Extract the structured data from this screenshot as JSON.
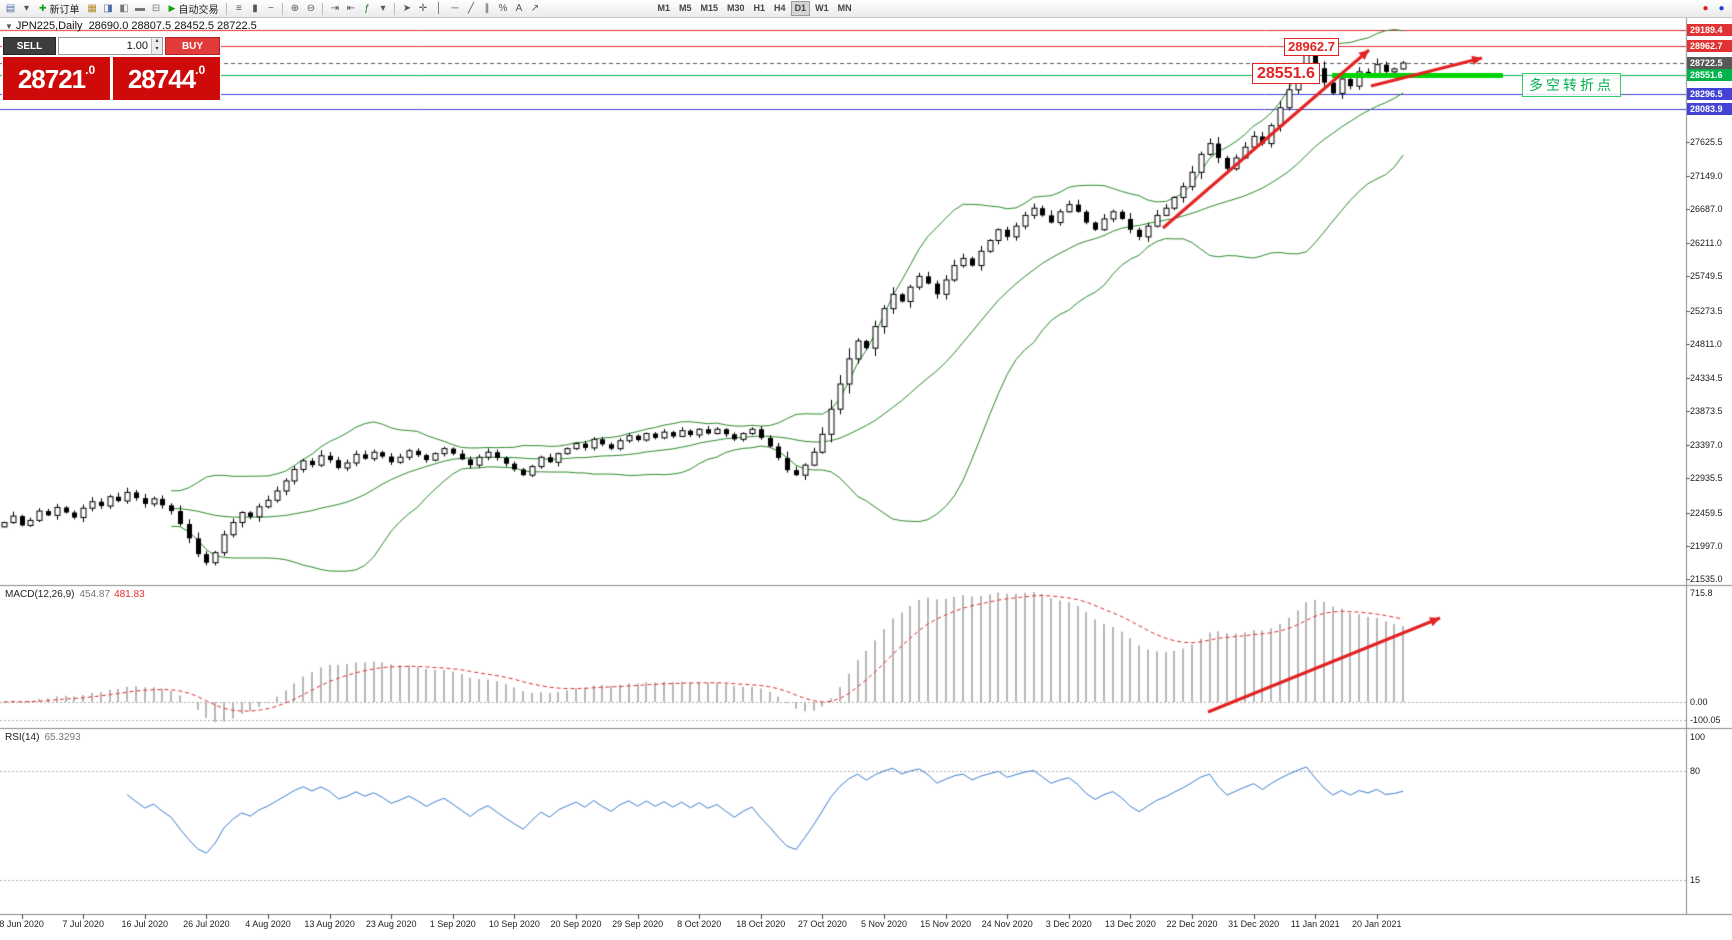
{
  "toolbar": {
    "timeframes": [
      "M1",
      "M5",
      "M15",
      "M30",
      "H1",
      "H4",
      "D1",
      "W1",
      "MN"
    ],
    "active_timeframe": "D1",
    "items": [
      {
        "type": "icon",
        "name": "new-chart-icon",
        "glyph": "▤",
        "color": "#4a6fa5"
      },
      {
        "type": "icon",
        "name": "chart-list-dropdown-icon",
        "glyph": "▾",
        "color": "#555"
      },
      {
        "type": "button",
        "name": "new-order-button",
        "icon_name": "new-order-plus-icon",
        "glyph": "✚",
        "glyph_color": "#1c9c1c",
        "label": "新订单"
      },
      {
        "type": "icon",
        "name": "market-watch-icon",
        "glyph": "▦",
        "color": "#b5882a"
      },
      {
        "type": "icon",
        "name": "data-window-icon",
        "glyph": "◨",
        "color": "#4a6fa5"
      },
      {
        "type": "icon",
        "name": "navigator-icon",
        "glyph": "◧",
        "color": "#777"
      },
      {
        "type": "icon",
        "name": "terminal-icon",
        "glyph": "▬",
        "color": "#777"
      },
      {
        "type": "icon",
        "name": "strategy-tester-icon",
        "glyph": "⊟",
        "color": "#777"
      },
      {
        "type": "button",
        "name": "auto-trading-button",
        "icon_name": "auto-trading-play-icon",
        "glyph": "▶",
        "glyph_color": "#16a016",
        "label": "自动交易"
      },
      {
        "type": "sep"
      },
      {
        "type": "icon",
        "name": "bar-chart-icon",
        "glyph": "≡",
        "color": "#555"
      },
      {
        "type": "icon",
        "name": "candlestick-chart-icon",
        "glyph": "▮",
        "color": "#555"
      },
      {
        "type": "icon",
        "name": "line-chart-icon",
        "glyph": "~",
        "color": "#555"
      },
      {
        "type": "sep"
      },
      {
        "type": "icon",
        "name": "zoom-in-icon",
        "glyph": "⊕",
        "color": "#555"
      },
      {
        "type": "icon",
        "name": "zoom-out-icon",
        "glyph": "⊖",
        "color": "#555"
      },
      {
        "type": "sep"
      },
      {
        "type": "icon",
        "name": "auto-scroll-icon",
        "glyph": "⇥",
        "color": "#555"
      },
      {
        "type": "icon",
        "name": "chart-shift-icon",
        "glyph": "⇤",
        "color": "#555"
      },
      {
        "type": "icon",
        "name": "indicators-icon",
        "glyph": "ƒ",
        "color": "#2a7a2a"
      },
      {
        "type": "icon",
        "name": "indicators-dropdown-icon",
        "glyph": "▾",
        "color": "#555"
      },
      {
        "type": "sep"
      },
      {
        "type": "icon",
        "name": "cursor-icon",
        "glyph": "➤",
        "color": "#555"
      },
      {
        "type": "icon",
        "name": "crosshair-icon",
        "glyph": "✛",
        "color": "#555"
      },
      {
        "type": "icon",
        "name": "vertical-line-icon",
        "glyph": "│",
        "color": "#555"
      },
      {
        "type": "icon",
        "name": "horizontal-line-icon",
        "glyph": "─",
        "color": "#555"
      },
      {
        "type": "icon",
        "name": "trendline-icon",
        "glyph": "╱",
        "color": "#555"
      },
      {
        "type": "icon",
        "name": "equidistant-channel-icon",
        "glyph": "∥",
        "color": "#555"
      },
      {
        "type": "icon",
        "name": "fibonacci-icon",
        "glyph": "%",
        "color": "#555"
      },
      {
        "type": "icon",
        "name": "text-label-icon",
        "glyph": "A",
        "color": "#555"
      },
      {
        "type": "icon",
        "name": "arrows-tool-icon",
        "glyph": "↗",
        "color": "#555"
      },
      {
        "type": "tf-group",
        "ml": 110
      },
      {
        "type": "spacer"
      },
      {
        "type": "icon",
        "name": "alert-icon",
        "glyph": "●",
        "color": "#d42222"
      },
      {
        "type": "icon",
        "name": "news-icon",
        "glyph": "●",
        "color": "#2244cc"
      }
    ]
  },
  "chart": {
    "collapse_arrow": "▼",
    "title": "JPN225,Daily",
    "ohlc_text": "28690.0 28807.5 28452.5 28722.5",
    "price_axis": {
      "regular_ticks": [
        "27625.5",
        "27149.0",
        "26687.0",
        "26211.0",
        "25749.5",
        "25273.5",
        "24811.0",
        "24334.5",
        "23873.5",
        "23397.0",
        "22935.5",
        "22459.5",
        "21997.0",
        "21535.0"
      ],
      "special_ticks": [
        {
          "value": "29189.4",
          "color": "#e03232",
          "line": "solid"
        },
        {
          "value": "28962.7",
          "color": "#e03232",
          "line": "solid"
        },
        {
          "value": "28722.5",
          "color": "#585858",
          "line": "dashed"
        },
        {
          "value": "28551.6",
          "color": "#00b44a",
          "line": "solid"
        },
        {
          "value": "28296.5",
          "color": "#4444d4",
          "line": "solid"
        },
        {
          "value": "28083.9",
          "color": "#4444d4",
          "line": "solid"
        }
      ]
    },
    "annotations": {
      "high_label": "28962.7",
      "pivot_label": "28551.6",
      "pivot_price": "28551.6",
      "note_text": "多空转折点"
    }
  },
  "trade_panel": {
    "sell_label": "SELL",
    "buy_label": "BUY",
    "volume": "1.00",
    "sell_price_main": "28721",
    "sell_price_sup": ".0",
    "buy_price_main": "28744",
    "buy_price_sup": ".0"
  },
  "macd": {
    "label": "MACD(12,26,9)",
    "value_main": "454.87",
    "value_signal": "481.83",
    "axis_labels": [
      "715.8",
      "0.00",
      "-100.05"
    ],
    "levels": [
      0,
      -100.05
    ]
  },
  "rsi": {
    "label": "RSI(14)",
    "value": "65.3293",
    "axis_labels": [
      "100",
      "80",
      "15"
    ],
    "levels": [
      80,
      15
    ]
  },
  "chart_data": {
    "type": "candlestick",
    "symbol": "JPN225",
    "timeframe": "Daily",
    "visible_ohlc": {
      "open": 28690.0,
      "high": 28807.5,
      "low": 28452.5,
      "close": 28722.5
    },
    "y_range": [
      21450,
      29350
    ],
    "levels": [
      29189.4,
      28962.7,
      28722.5,
      28551.6,
      28296.5,
      28083.9
    ],
    "indicators": [
      {
        "name": "Bollinger Bands",
        "params": "20,2"
      },
      {
        "name": "MACD",
        "params": "12,26,9",
        "values": [
          454.87,
          481.83
        ]
      },
      {
        "name": "RSI",
        "params": "14",
        "value": 65.3293
      }
    ],
    "dates": [
      "8 Jun 2020",
      "7 Jul 2020",
      "16 Jul 2020",
      "26 Jul 2020",
      "4 Aug 2020",
      "13 Aug 2020",
      "23 Aug 2020",
      "1 Sep 2020",
      "10 Sep 2020",
      "20 Sep 2020",
      "29 Sep 2020",
      "8 Oct 2020",
      "18 Oct 2020",
      "27 Oct 2020",
      "5 Nov 2020",
      "15 Nov 2020",
      "24 Nov 2020",
      "3 Dec 2020",
      "13 Dec 2020",
      "22 Dec 2020",
      "31 Dec 2020",
      "11 Jan 2021",
      "20 Jan 2021"
    ],
    "closes": [
      22320,
      22410,
      22280,
      22350,
      22480,
      22420,
      22530,
      22460,
      22390,
      22520,
      22610,
      22550,
      22680,
      22620,
      22740,
      22660,
      22580,
      22650,
      22560,
      22480,
      22300,
      22100,
      21880,
      21760,
      21900,
      22150,
      22320,
      22460,
      22400,
      22540,
      22630,
      22760,
      22900,
      23060,
      23180,
      23120,
      23250,
      23190,
      23080,
      23150,
      23270,
      23210,
      23300,
      23240,
      23160,
      23230,
      23320,
      23260,
      23190,
      23280,
      23350,
      23280,
      23200,
      23120,
      23230,
      23300,
      23220,
      23140,
      23060,
      22980,
      23100,
      23230,
      23160,
      23280,
      23350,
      23420,
      23360,
      23480,
      23410,
      23350,
      23460,
      23530,
      23470,
      23560,
      23500,
      23580,
      23520,
      23600,
      23540,
      23620,
      23560,
      23620,
      23550,
      23480,
      23560,
      23620,
      23500,
      23380,
      23220,
      23050,
      22980,
      23120,
      23300,
      23550,
      23900,
      24250,
      24600,
      24850,
      24750,
      25050,
      25300,
      25500,
      25400,
      25600,
      25750,
      25650,
      25500,
      25700,
      25900,
      26000,
      25900,
      26100,
      26250,
      26400,
      26300,
      26450,
      26600,
      26700,
      26600,
      26500,
      26650,
      26750,
      26650,
      26500,
      26400,
      26550,
      26650,
      26550,
      26400,
      26300,
      26450,
      26600,
      26700,
      26850,
      27000,
      27200,
      27450,
      27600,
      27400,
      27250,
      27400,
      27550,
      27700,
      27600,
      27850,
      28100,
      28350,
      28600,
      28850,
      28650,
      28450,
      28300,
      28500,
      28400,
      28600,
      28550,
      28700,
      28600,
      28640,
      28722.5
    ]
  }
}
